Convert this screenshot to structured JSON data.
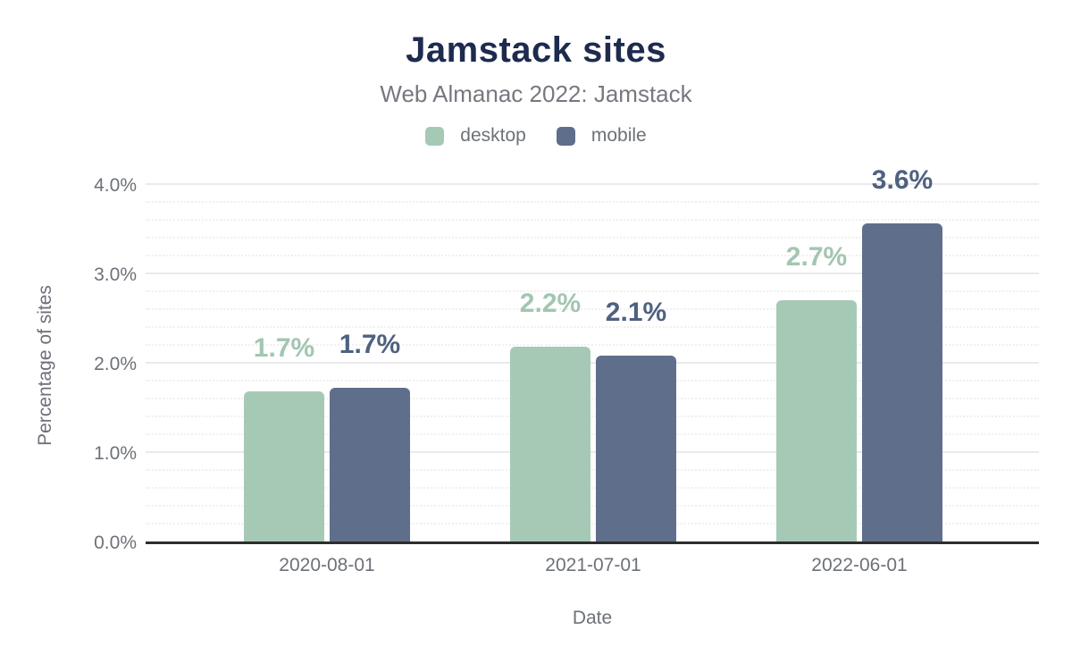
{
  "chart_data": {
    "type": "bar",
    "title": "Jamstack sites",
    "subtitle": "Web Almanac 2022: Jamstack",
    "xlabel": "Date",
    "ylabel": "Percentage of sites",
    "categories": [
      "2020-08-01",
      "2021-07-01",
      "2022-06-01"
    ],
    "series": [
      {
        "name": "desktop",
        "color": "#a6c9b5",
        "label_color": "#a2c6b1",
        "values": [
          1.69,
          2.19,
          2.71
        ],
        "labels": [
          "1.7%",
          "2.2%",
          "2.7%"
        ]
      },
      {
        "name": "mobile",
        "color": "#5f6f8b",
        "label_color": "#4e6180",
        "values": [
          1.73,
          2.09,
          3.57
        ],
        "labels": [
          "1.7%",
          "2.1%",
          "3.6%"
        ]
      }
    ],
    "y_axis": {
      "ticks": [
        {
          "label": "0.0%",
          "value": 0
        },
        {
          "label": "1.0%",
          "value": 1
        },
        {
          "label": "2.0%",
          "value": 2
        },
        {
          "label": "3.0%",
          "value": 3
        },
        {
          "label": "4.0%",
          "value": 4
        }
      ],
      "max": 4.0,
      "minor_step": 0.2
    },
    "grid": true,
    "legend_position": "top"
  },
  "colors": {
    "title_text": "#1e2b4f",
    "subtitle_text": "#75797f",
    "axis_text": "#6d7178",
    "axis_line": "#2d2d2d",
    "grid_major": "#eaeaea",
    "grid_minor": "#f0f0f0",
    "background": "#ffffff"
  }
}
